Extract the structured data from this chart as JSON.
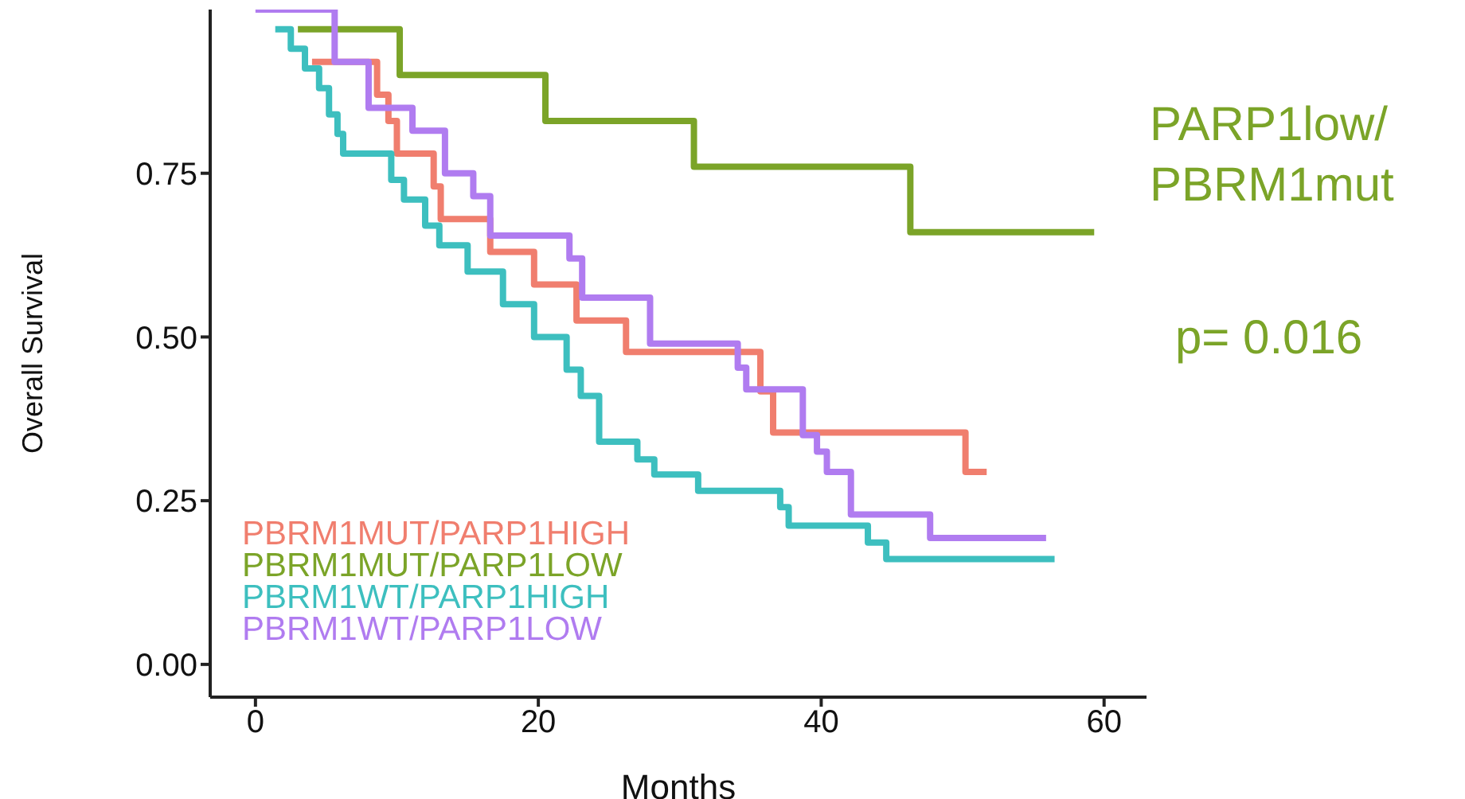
{
  "chart_data": {
    "type": "step",
    "xlabel": "Months",
    "ylabel": "Overall Survival",
    "xlim": [
      -3.2,
      63
    ],
    "xticks": [
      0,
      20,
      40,
      60
    ],
    "ylim": [
      -0.05,
      1
    ],
    "yticks": [
      {
        "value": 0,
        "label": "0.00"
      },
      {
        "value": 0.25,
        "label": "0.25"
      },
      {
        "value": 0.5,
        "label": "0.50"
      },
      {
        "value": 0.75,
        "label": "0.75"
      }
    ],
    "grid": false,
    "legend": "bottom left",
    "annotations": [
      "PARP1low/\nPBRM1mut",
      "p= 0.016"
    ],
    "series": [
      {
        "name": "PBRM1MUT/PARP1HIGH",
        "color": "#f07e6e",
        "x": [
          4,
          8.6,
          9.4,
          10,
          12.6,
          13.1,
          16.6,
          19.7,
          22.7,
          26.2,
          35.7,
          36.6,
          50.2,
          51.7
        ],
        "values": [
          0.92,
          0.87,
          0.83,
          0.78,
          0.73,
          0.68,
          0.63,
          0.58,
          0.525,
          0.477,
          0.417,
          0.354,
          0.294,
          0.294
        ]
      },
      {
        "name": "PBRM1MUT/PARP1LOW",
        "color": "#7ba428",
        "x": [
          3,
          10.2,
          20.5,
          31,
          46.3,
          59.3
        ],
        "values": [
          0.97,
          0.9,
          0.83,
          0.76,
          0.66,
          0.66
        ]
      },
      {
        "name": "PBRM1WT/PARP1HIGH",
        "color": "#3dbfbf",
        "x": [
          1.4,
          2.5,
          3.5,
          4.5,
          5.2,
          5.8,
          6.2,
          9.6,
          10.5,
          12,
          13,
          15,
          17.5,
          19.7,
          22,
          23,
          24.3,
          27,
          28.2,
          31.3,
          37.1,
          37.7,
          43.3,
          44.6,
          56.5
        ],
        "values": [
          0.97,
          0.94,
          0.91,
          0.88,
          0.84,
          0.81,
          0.78,
          0.74,
          0.71,
          0.67,
          0.64,
          0.6,
          0.55,
          0.5,
          0.45,
          0.41,
          0.34,
          0.313,
          0.29,
          0.265,
          0.24,
          0.212,
          0.186,
          0.161,
          0.161
        ]
      },
      {
        "name": "PBRM1WT/PARP1LOW",
        "color": "#b07cf0",
        "x": [
          0,
          5.6,
          8,
          11.1,
          13.4,
          15.4,
          16.6,
          22.2,
          23.1,
          27.9,
          34.1,
          34.7,
          38.7,
          39.7,
          40.4,
          42.1,
          47.7,
          55.9
        ],
        "values": [
          1,
          0.92,
          0.85,
          0.815,
          0.75,
          0.715,
          0.655,
          0.62,
          0.56,
          0.49,
          0.453,
          0.42,
          0.35,
          0.325,
          0.294,
          0.229,
          0.193,
          0.193
        ]
      }
    ]
  }
}
